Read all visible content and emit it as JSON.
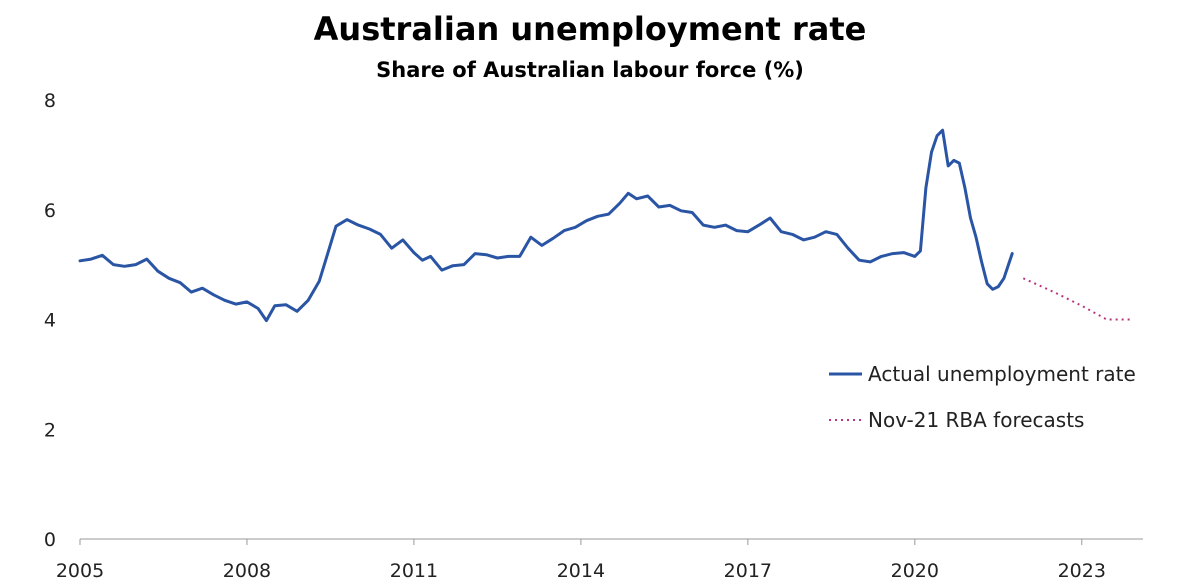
{
  "chart_data": {
    "type": "line",
    "title": "Australian unemployment rate",
    "subtitle": "Share of Australian labour force (%)",
    "xlabel": "",
    "ylabel": "",
    "xlim": [
      2005.0,
      2024.1
    ],
    "ylim": [
      0,
      8
    ],
    "y_ticks": [
      0,
      2,
      4,
      6,
      8
    ],
    "x_ticks": [
      2005,
      2008,
      2011,
      2014,
      2017,
      2020,
      2023
    ],
    "grid": false,
    "legend_position": "right",
    "colors": {
      "actual": "#2a55a5",
      "forecast": "#b8357c"
    },
    "series": [
      {
        "name": "Actual unemployment rate",
        "style": "solid",
        "x": [
          2005.0,
          2005.2,
          2005.4,
          2005.6,
          2005.8,
          2006.0,
          2006.2,
          2006.4,
          2006.6,
          2006.8,
          2007.0,
          2007.2,
          2007.4,
          2007.6,
          2007.8,
          2008.0,
          2008.2,
          2008.35,
          2008.5,
          2008.7,
          2008.9,
          2009.1,
          2009.3,
          2009.45,
          2009.6,
          2009.8,
          2010.0,
          2010.2,
          2010.4,
          2010.6,
          2010.8,
          2011.0,
          2011.15,
          2011.3,
          2011.5,
          2011.7,
          2011.9,
          2012.1,
          2012.3,
          2012.5,
          2012.7,
          2012.9,
          2013.1,
          2013.3,
          2013.5,
          2013.7,
          2013.9,
          2014.1,
          2014.3,
          2014.5,
          2014.7,
          2014.85,
          2015.0,
          2015.2,
          2015.4,
          2015.6,
          2015.8,
          2016.0,
          2016.2,
          2016.4,
          2016.6,
          2016.8,
          2017.0,
          2017.2,
          2017.4,
          2017.6,
          2017.8,
          2018.0,
          2018.2,
          2018.4,
          2018.6,
          2018.8,
          2019.0,
          2019.2,
          2019.4,
          2019.6,
          2019.8,
          2020.0,
          2020.1,
          2020.2,
          2020.3,
          2020.4,
          2020.5,
          2020.6,
          2020.7,
          2020.8,
          2020.9,
          2021.0,
          2021.1,
          2021.2,
          2021.3,
          2021.4,
          2021.5,
          2021.6,
          2021.7,
          2021.75
        ],
        "y": [
          5.07,
          5.1,
          5.17,
          5.0,
          4.97,
          5.0,
          5.1,
          4.88,
          4.75,
          4.67,
          4.5,
          4.57,
          4.45,
          4.35,
          4.28,
          4.32,
          4.2,
          3.98,
          4.25,
          4.27,
          4.15,
          4.35,
          4.7,
          5.2,
          5.7,
          5.82,
          5.72,
          5.65,
          5.55,
          5.3,
          5.45,
          5.22,
          5.08,
          5.15,
          4.9,
          4.98,
          5.0,
          5.2,
          5.18,
          5.12,
          5.15,
          5.15,
          5.5,
          5.35,
          5.48,
          5.62,
          5.68,
          5.8,
          5.88,
          5.92,
          6.12,
          6.3,
          6.2,
          6.25,
          6.05,
          6.08,
          5.98,
          5.95,
          5.72,
          5.68,
          5.72,
          5.62,
          5.6,
          5.72,
          5.85,
          5.6,
          5.55,
          5.45,
          5.5,
          5.6,
          5.55,
          5.3,
          5.08,
          5.05,
          5.15,
          5.2,
          5.22,
          5.15,
          5.25,
          6.4,
          7.05,
          7.35,
          7.45,
          6.8,
          6.9,
          6.85,
          6.4,
          5.85,
          5.5,
          5.05,
          4.65,
          4.55,
          4.6,
          4.75,
          5.05,
          5.2
        ]
      },
      {
        "name": "Nov-21 RBA forecasts",
        "style": "dotted",
        "x": [
          2021.95,
          2022.5,
          2023.0,
          2023.45,
          2023.9
        ],
        "y": [
          4.75,
          4.5,
          4.25,
          4.0,
          4.0
        ]
      }
    ]
  }
}
